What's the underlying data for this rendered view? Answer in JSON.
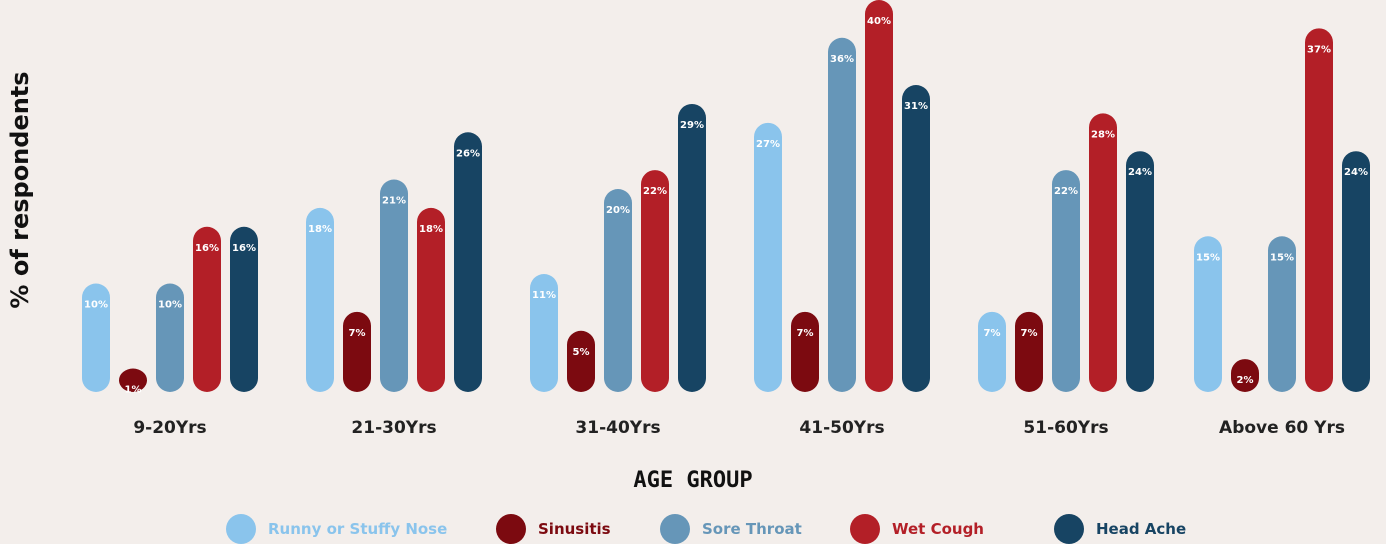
{
  "chart_data": {
    "type": "bar",
    "ylabel": "% of respondents",
    "xlabel": "AGE GROUP",
    "ylim": [
      0,
      42
    ],
    "categories": [
      "9-20Yrs",
      "21-30Yrs",
      "31-40Yrs",
      "41-50Yrs",
      "51-60Yrs",
      "Above 60 Yrs"
    ],
    "series": [
      {
        "name": "Runny or Stuffy Nose",
        "color": "#8ac4ec",
        "values": [
          10,
          18,
          11,
          27,
          7,
          15
        ]
      },
      {
        "name": "Sinusitis",
        "color": "#7c0a10",
        "values": [
          1,
          7,
          5,
          7,
          7,
          2
        ]
      },
      {
        "name": "Sore Throat",
        "color": "#6696b8",
        "values": [
          10,
          21,
          20,
          36,
          22,
          15
        ]
      },
      {
        "name": "Wet Cough",
        "color": "#b31f27",
        "values": [
          16,
          18,
          22,
          40,
          28,
          37
        ]
      },
      {
        "name": "Head Ache",
        "color": "#174463",
        "values": [
          16,
          26,
          29,
          31,
          24,
          24
        ]
      }
    ],
    "value_suffix": "%",
    "legend_position": "bottom"
  }
}
